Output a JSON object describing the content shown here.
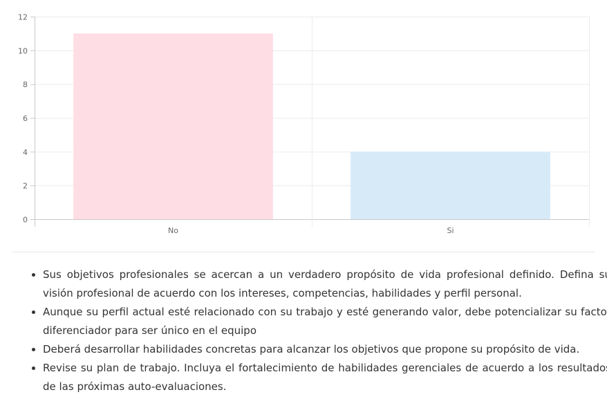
{
  "chart_data": {
    "type": "bar",
    "categories": [
      "No",
      "Si"
    ],
    "values": [
      11,
      4
    ],
    "ylim": [
      0,
      12
    ],
    "yticks": [
      0,
      2,
      4,
      6,
      8,
      10,
      12
    ],
    "bar_colors": [
      "#ffdde4",
      "#d7eaf8"
    ],
    "grid": true
  },
  "notes": [
    "Sus objetivos profesionales se acercan a un verdadero propósito de vida profesional definido. Defina su visión profesional de acuerdo con los intereses, competencias, habilidades y perfil personal.",
    "Aunque su perfil actual esté relacionado con su trabajo y esté generando valor, debe potencializar su factor diferenciador para ser único en el equipo",
    "Deberá desarrollar habilidades concretas para alcanzar los objetivos que propone su propósito de vida.",
    "Revise su plan de trabajo. Incluya el fortalecimiento de habilidades gerenciales de acuerdo a los resultados de las próximas auto-evaluaciones."
  ]
}
